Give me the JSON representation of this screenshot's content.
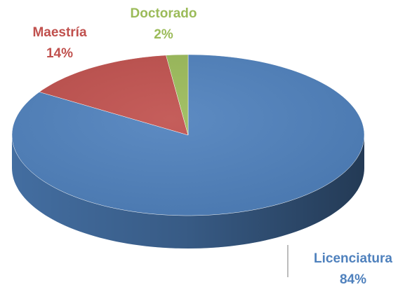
{
  "chart_data": {
    "type": "pie",
    "categories": [
      "Licenciatura",
      "Maestría",
      "Doctorado"
    ],
    "values": [
      84,
      14,
      2
    ],
    "value_labels": [
      "84%",
      "14%",
      "2%"
    ],
    "colors": [
      "#4f81bd",
      "#c0504d",
      "#9bbb59"
    ],
    "start_angle": 0,
    "direction": "clockwise",
    "style": "3d"
  }
}
